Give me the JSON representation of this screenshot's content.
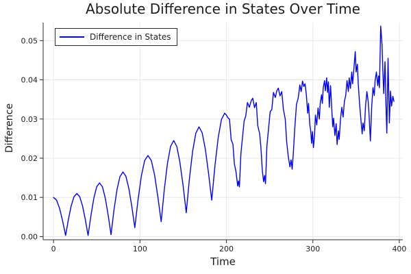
{
  "chart_data": {
    "type": "line",
    "title": "Absolute Difference in States Over Time",
    "xlabel": "Time",
    "ylabel": "Difference",
    "legend": {
      "position": "top-left",
      "entries": [
        "Difference in States"
      ]
    },
    "grid": true,
    "xlim": [
      -12,
      404
    ],
    "ylim": [
      -0.0008,
      0.0546
    ],
    "xticks": [
      0,
      100,
      200,
      300,
      400
    ],
    "xtick_labels": [
      "0",
      "100",
      "200",
      "300",
      "400"
    ],
    "yticks": [
      0,
      0.01,
      0.02,
      0.03,
      0.04,
      0.05
    ],
    "ytick_labels": [
      "0.00",
      "0.01",
      "0.02",
      "0.03",
      "0.04",
      "0.05"
    ],
    "series": [
      {
        "name": "Difference in States",
        "color": "#0000ff",
        "points": [
          [
            0,
            0.01
          ],
          [
            3.5,
            0.0093
          ],
          [
            7,
            0.0072
          ],
          [
            10.5,
            0.004
          ],
          [
            14,
            0.0003
          ],
          [
            17.25,
            0.0044
          ],
          [
            20.5,
            0.0079
          ],
          [
            23.75,
            0.0102
          ],
          [
            27,
            0.011
          ],
          [
            30.25,
            0.0102
          ],
          [
            33.5,
            0.0079
          ],
          [
            36.75,
            0.0044
          ],
          [
            40,
            0.0003
          ],
          [
            43.3,
            0.0054
          ],
          [
            46.6,
            0.0098
          ],
          [
            49.9,
            0.0127
          ],
          [
            53.25,
            0.0137
          ],
          [
            56.6,
            0.0127
          ],
          [
            59.9,
            0.0098
          ],
          [
            63.2,
            0.0055
          ],
          [
            66.5,
            0.0005
          ],
          [
            69.9,
            0.0068
          ],
          [
            73.4,
            0.012
          ],
          [
            76.8,
            0.0153
          ],
          [
            80.3,
            0.0165
          ],
          [
            83.7,
            0.0154
          ],
          [
            87.2,
            0.0122
          ],
          [
            90.6,
            0.0076
          ],
          [
            94,
            0.0023
          ],
          [
            97.8,
            0.0095
          ],
          [
            101.6,
            0.0155
          ],
          [
            105.4,
            0.0194
          ],
          [
            109.25,
            0.0207
          ],
          [
            113.1,
            0.0194
          ],
          [
            116.9,
            0.0157
          ],
          [
            120.7,
            0.0101
          ],
          [
            124.5,
            0.0038
          ],
          [
            128.1,
            0.0119
          ],
          [
            131.75,
            0.0186
          ],
          [
            135.4,
            0.023
          ],
          [
            139,
            0.0245
          ],
          [
            142.6,
            0.023
          ],
          [
            146.25,
            0.0189
          ],
          [
            149.9,
            0.013
          ],
          [
            153.5,
            0.0061
          ],
          [
            157.2,
            0.0147
          ],
          [
            160.9,
            0.0218
          ],
          [
            164.6,
            0.0264
          ],
          [
            168.25,
            0.028
          ],
          [
            171.9,
            0.0265
          ],
          [
            175.6,
            0.0223
          ],
          [
            179.3,
            0.0162
          ],
          [
            183,
            0.0093
          ],
          [
            186.75,
            0.0181
          ],
          [
            190.5,
            0.0253
          ],
          [
            194.25,
            0.0299
          ],
          [
            198,
            0.0315
          ],
          [
            200,
            0.031
          ],
          [
            201.75,
            0.0303
          ],
          [
            203.5,
            0.03
          ],
          [
            205.5,
            0.0247
          ],
          [
            207.5,
            0.0236
          ],
          [
            209.25,
            0.0185
          ],
          [
            211,
            0.0167
          ],
          [
            213,
            0.0129
          ],
          [
            214,
            0.0142
          ],
          [
            215,
            0.0127
          ],
          [
            216.75,
            0.0212
          ],
          [
            220.5,
            0.0295
          ],
          [
            222.4,
            0.0308
          ],
          [
            224.25,
            0.0342
          ],
          [
            226.5,
            0.033
          ],
          [
            228.75,
            0.0347
          ],
          [
            230.5,
            0.0353
          ],
          [
            232.5,
            0.0329
          ],
          [
            234.5,
            0.0342
          ],
          [
            236.25,
            0.0283
          ],
          [
            238.5,
            0.0262
          ],
          [
            240,
            0.0225
          ],
          [
            241.5,
            0.017
          ],
          [
            243,
            0.014
          ],
          [
            244.2,
            0.0156
          ],
          [
            245.2,
            0.0135
          ],
          [
            246.8,
            0.023
          ],
          [
            250.6,
            0.0319
          ],
          [
            252.5,
            0.0324
          ],
          [
            254.4,
            0.0368
          ],
          [
            256.5,
            0.0355
          ],
          [
            258.25,
            0.0372
          ],
          [
            260,
            0.0379
          ],
          [
            262,
            0.0359
          ],
          [
            264,
            0.037
          ],
          [
            265.9,
            0.0325
          ],
          [
            268,
            0.03
          ],
          [
            269.7,
            0.0242
          ],
          [
            271.5,
            0.0205
          ],
          [
            273.5,
            0.0178
          ],
          [
            274.8,
            0.0196
          ],
          [
            276,
            0.0172
          ],
          [
            277.3,
            0.021
          ],
          [
            279,
            0.0273
          ],
          [
            281,
            0.0337
          ],
          [
            283,
            0.0353
          ],
          [
            285,
            0.0387
          ],
          [
            286.5,
            0.037
          ],
          [
            288,
            0.0397
          ],
          [
            289.5,
            0.0383
          ],
          [
            291,
            0.039
          ],
          [
            292.5,
            0.036
          ],
          [
            294,
            0.0315
          ],
          [
            295,
            0.034
          ],
          [
            296.5,
            0.0285
          ],
          [
            297.5,
            0.027
          ],
          [
            298.5,
            0.0238
          ],
          [
            299.5,
            0.0268
          ],
          [
            300.7,
            0.0227
          ],
          [
            302,
            0.0262
          ],
          [
            303,
            0.031
          ],
          [
            304.5,
            0.0285
          ],
          [
            306,
            0.0328
          ],
          [
            307.5,
            0.03
          ],
          [
            308.5,
            0.034
          ],
          [
            310,
            0.0362
          ],
          [
            311,
            0.034
          ],
          [
            312,
            0.038
          ],
          [
            313.5,
            0.0398
          ],
          [
            314.5,
            0.0372
          ],
          [
            316,
            0.0405
          ],
          [
            317,
            0.0368
          ],
          [
            318,
            0.0395
          ],
          [
            319,
            0.033
          ],
          [
            320.5,
            0.0385
          ],
          [
            322,
            0.032
          ],
          [
            323,
            0.028
          ],
          [
            324,
            0.0302
          ],
          [
            325.5,
            0.0258
          ],
          [
            327,
            0.0288
          ],
          [
            328,
            0.0235
          ],
          [
            329.5,
            0.027
          ],
          [
            330.5,
            0.0248
          ],
          [
            332,
            0.03
          ],
          [
            333.5,
            0.033
          ],
          [
            335,
            0.0305
          ],
          [
            336.5,
            0.0345
          ],
          [
            338,
            0.036
          ],
          [
            339.5,
            0.0398
          ],
          [
            341,
            0.037
          ],
          [
            342,
            0.0405
          ],
          [
            343.5,
            0.0378
          ],
          [
            345,
            0.042
          ],
          [
            346,
            0.039
          ],
          [
            347.5,
            0.043
          ],
          [
            349,
            0.0472
          ],
          [
            350,
            0.042
          ],
          [
            351.5,
            0.044
          ],
          [
            352.5,
            0.039
          ],
          [
            354,
            0.034
          ],
          [
            355.5,
            0.03
          ],
          [
            357,
            0.0262
          ],
          [
            358,
            0.029
          ],
          [
            359.5,
            0.027
          ],
          [
            361,
            0.0335
          ],
          [
            362.5,
            0.037
          ],
          [
            364,
            0.0345
          ],
          [
            365,
            0.031
          ],
          [
            366.5,
            0.0244
          ],
          [
            368,
            0.033
          ],
          [
            369.5,
            0.038
          ],
          [
            371,
            0.036
          ],
          [
            372,
            0.0398
          ],
          [
            373.5,
            0.042
          ],
          [
            375,
            0.0385
          ],
          [
            376,
            0.041
          ],
          [
            377,
            0.038
          ],
          [
            378.5,
            0.0537
          ],
          [
            380,
            0.049
          ],
          [
            381,
            0.042
          ],
          [
            382,
            0.0365
          ],
          [
            383.5,
            0.0446
          ],
          [
            384.5,
            0.034
          ],
          [
            385.5,
            0.0264
          ],
          [
            387,
            0.0455
          ],
          [
            388.5,
            0.029
          ],
          [
            389.8,
            0.0371
          ],
          [
            391,
            0.0333
          ],
          [
            392.5,
            0.0358
          ],
          [
            393.8,
            0.0345
          ]
        ]
      }
    ]
  },
  "style": {
    "line_color": "#0000ff",
    "grid_color": "#e8e8e8",
    "spine_color": "#2a2a2a",
    "tick_color": "#2a2a2a",
    "text_color": "#1c1c1c",
    "background": "#ffffff",
    "legend_border_color": "#2a2a2a"
  }
}
